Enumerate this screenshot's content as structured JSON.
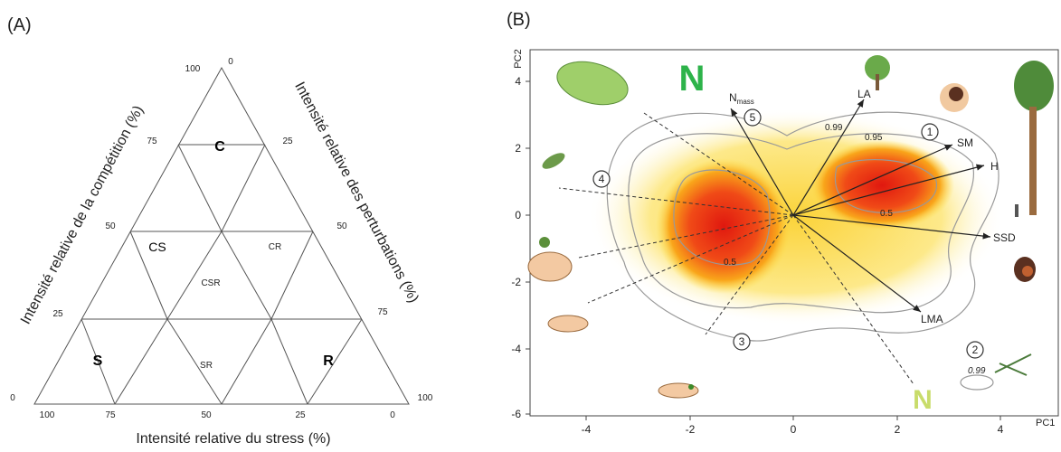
{
  "panel_a": {
    "label": "(A)",
    "strategies": {
      "C": "C",
      "CS": "CS",
      "CR": "CR",
      "CSR": "CSR",
      "S": "S",
      "SR": "SR",
      "R": "R"
    },
    "left_ticks": [
      "100",
      "75",
      "50",
      "25",
      "0"
    ],
    "right_ticks": [
      "0",
      "25",
      "50",
      "75",
      "100"
    ],
    "bottom_ticks": [
      "100",
      "75",
      "50",
      "25",
      "0"
    ],
    "left_title": "Intensité relative de la compétition (%)",
    "right_title": "Intensité relative des perturbations (%)",
    "bottom_title": "Intensité relative du stress (%)"
  },
  "panel_b": {
    "label": "(B)",
    "x_ticks": [
      "-4",
      "-2",
      "0",
      "2",
      "4"
    ],
    "y_ticks": [
      "4",
      "2",
      "0",
      "-2",
      "-4",
      "-6"
    ],
    "x_label": "PC1",
    "y_label": "PC2",
    "traits": {
      "n_base": "N",
      "n_sub": "mass",
      "la": "LA",
      "sm": "SM",
      "h": "H",
      "ssd": "SSD",
      "lma": "LMA"
    },
    "circles": [
      "1",
      "2",
      "3",
      "4",
      "5"
    ],
    "contours": {
      "c099a": "0.99",
      "c095": "0.95",
      "c05a": "0.5",
      "c05b": "0.5",
      "c099b": "0.99"
    },
    "n_icons": [
      "N",
      "N"
    ]
  }
}
